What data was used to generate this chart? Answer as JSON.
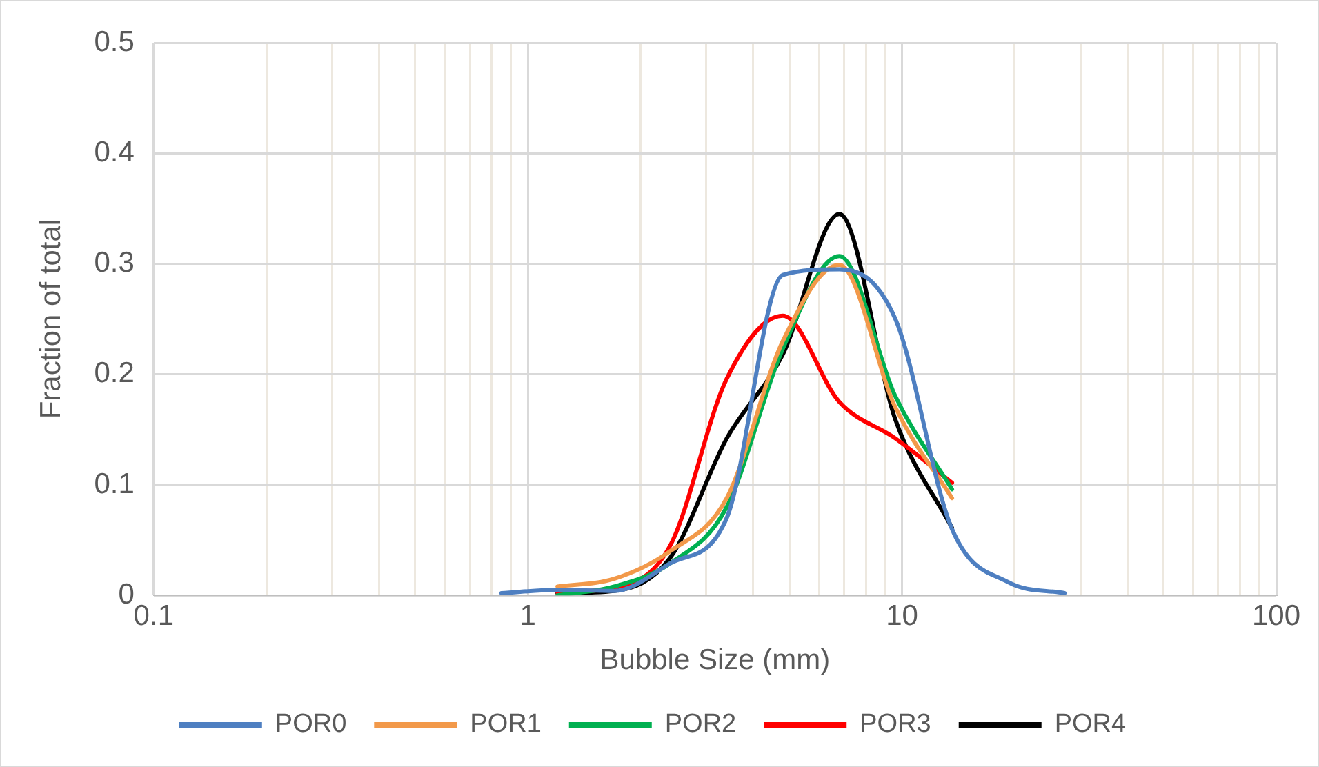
{
  "chart_data": {
    "type": "line",
    "xlabel": "Bubble Size (mm)",
    "ylabel": "Fraction of total",
    "log": "x",
    "grid": true,
    "legend": "bottom",
    "marker": "none",
    "line_style": "solid",
    "xlim": [
      0.1,
      100
    ],
    "ylim": [
      0,
      0.5
    ],
    "yticks": [
      0,
      0.1,
      0.2,
      0.3,
      0.4,
      0.5
    ],
    "xticks": [
      0.1,
      {
        "value": 0.2,
        "label": null
      },
      {
        "value": 0.3,
        "label": null
      },
      {
        "value": 0.4,
        "label": null
      },
      {
        "value": 0.5,
        "label": null
      },
      {
        "value": 0.6,
        "label": null
      },
      {
        "value": 0.7,
        "label": null
      },
      {
        "value": 0.8,
        "label": null
      },
      {
        "value": 0.9,
        "label": null
      },
      1,
      {
        "value": 2,
        "label": null
      },
      {
        "value": 3,
        "label": null
      },
      {
        "value": 4,
        "label": null
      },
      {
        "value": 5,
        "label": null
      },
      {
        "value": 6,
        "label": null
      },
      {
        "value": 7,
        "label": null
      },
      {
        "value": 8,
        "label": null
      },
      {
        "value": 9,
        "label": null
      },
      10,
      {
        "value": 20,
        "label": null
      },
      {
        "value": 30,
        "label": null
      },
      {
        "value": 40,
        "label": null
      },
      {
        "value": 50,
        "label": null
      },
      {
        "value": 60,
        "label": null
      },
      {
        "value": 70,
        "label": null
      },
      {
        "value": 80,
        "label": null
      },
      {
        "value": 90,
        "label": null
      },
      100
    ],
    "series": [
      {
        "name": "POR0",
        "color": "#4e7fc1",
        "x": [
          0.85,
          1.2,
          1.7,
          2.4,
          3.4,
          4.8,
          6.8,
          9.6,
          13.6,
          19.2,
          27.2
        ],
        "values": [
          0.002,
          0.005,
          0.004,
          0.029,
          0.07,
          0.29,
          0.295,
          0.25,
          0.06,
          0.012,
          0.002
        ]
      },
      {
        "name": "POR1",
        "color": "#f2994a",
        "x": [
          1.2,
          1.7,
          2.4,
          3.4,
          4.8,
          6.8,
          9.6,
          13.6
        ],
        "values": [
          0.008,
          0.015,
          0.04,
          0.088,
          0.23,
          0.299,
          0.17,
          0.088
        ]
      },
      {
        "name": "POR2",
        "color": "#00b050",
        "x": [
          1.2,
          1.7,
          2.4,
          3.4,
          4.8,
          6.8,
          9.6,
          13.6
        ],
        "values": [
          0.0,
          0.008,
          0.029,
          0.08,
          0.223,
          0.307,
          0.18,
          0.096
        ]
      },
      {
        "name": "POR3",
        "color": "#ff0000",
        "x": [
          1.2,
          1.7,
          2.4,
          3.4,
          4.8,
          6.8,
          9.6,
          13.6
        ],
        "values": [
          0.003,
          0.007,
          0.045,
          0.196,
          0.253,
          0.175,
          0.142,
          0.102
        ]
      },
      {
        "name": "POR4",
        "color": "#000000",
        "x": [
          1.2,
          1.7,
          2.4,
          3.4,
          4.8,
          6.8,
          9.6,
          13.6
        ],
        "values": [
          0.002,
          0.004,
          0.034,
          0.142,
          0.218,
          0.345,
          0.159,
          0.061
        ]
      }
    ]
  }
}
